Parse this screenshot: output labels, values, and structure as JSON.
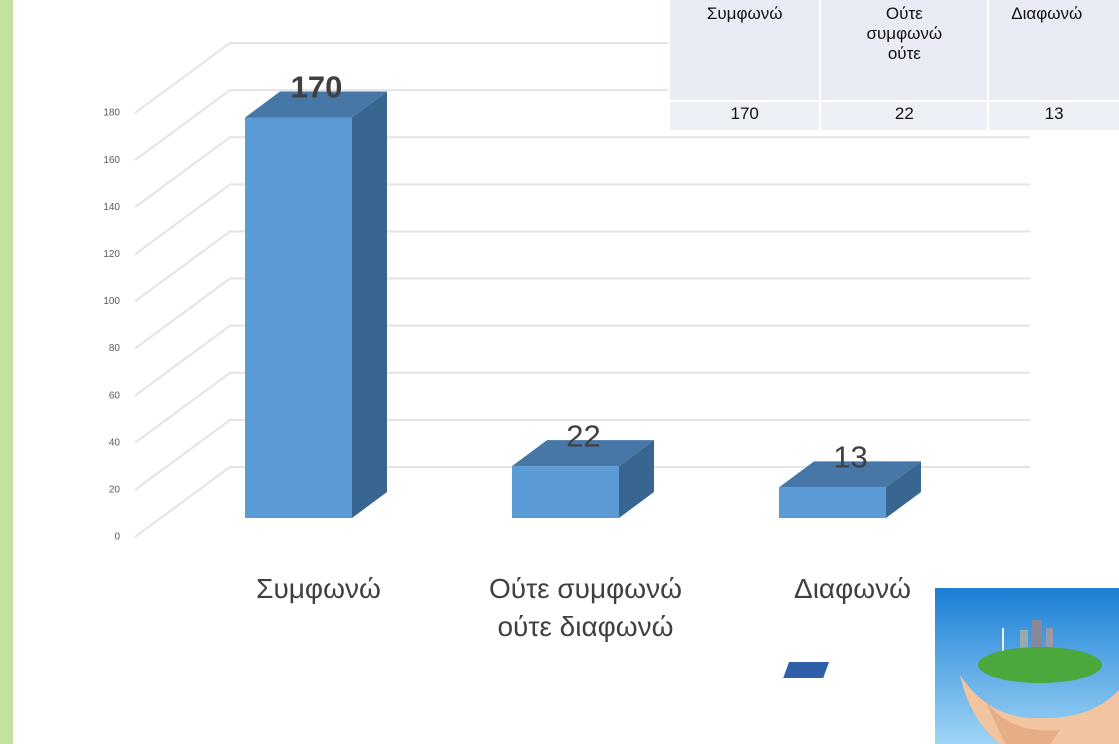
{
  "chart_data": {
    "type": "bar3d",
    "categories": [
      "Συμφωνώ",
      "Ούτε συμφωνώ ούτε διαφωνώ",
      "Διαφωνώ"
    ],
    "values": [
      170,
      22,
      13
    ],
    "color": "#5b9bd5",
    "ylim": [
      0,
      180
    ],
    "yticks": [
      0,
      20,
      40,
      60,
      80,
      100,
      120,
      140,
      160,
      180
    ],
    "grid": true,
    "data_table": {
      "headers": [
        "Συμφωνώ",
        "Ούτε συμφωνώ ούτε",
        "Διαφωνώ"
      ]
    }
  }
}
